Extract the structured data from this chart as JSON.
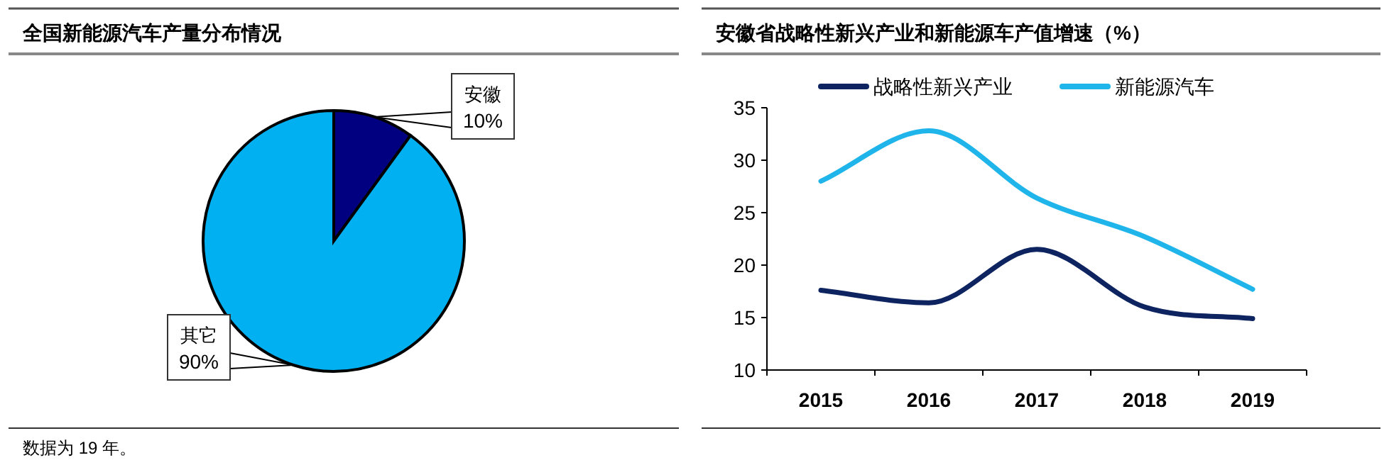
{
  "chart_data": [
    {
      "type": "pie",
      "title": "全国新能源汽车产量分布情况",
      "categories": [
        "安徽",
        "其它"
      ],
      "values": [
        10,
        90
      ],
      "colors": [
        "#000080",
        "#00b0f0"
      ],
      "value_labels": [
        "10%",
        "90%"
      ],
      "annotations": [
        "数据为 19 年。"
      ]
    },
    {
      "type": "line",
      "title": "安徽省战略性新兴产业和新能源车产值增速（%）",
      "categories": [
        "2015",
        "2016",
        "2017",
        "2018",
        "2019"
      ],
      "ylim": [
        10,
        35
      ],
      "yticks": [
        10,
        15,
        20,
        25,
        30,
        35
      ],
      "legend": "top",
      "series": [
        {
          "name": "战略性新兴产业",
          "color": "#0d2461",
          "values": [
            17.6,
            16.4,
            21.5,
            16.0,
            14.9
          ]
        },
        {
          "name": "新能源汽车",
          "color": "#1fb5ea",
          "values": [
            28.0,
            32.8,
            26.4,
            22.7,
            17.7
          ]
        }
      ]
    }
  ]
}
